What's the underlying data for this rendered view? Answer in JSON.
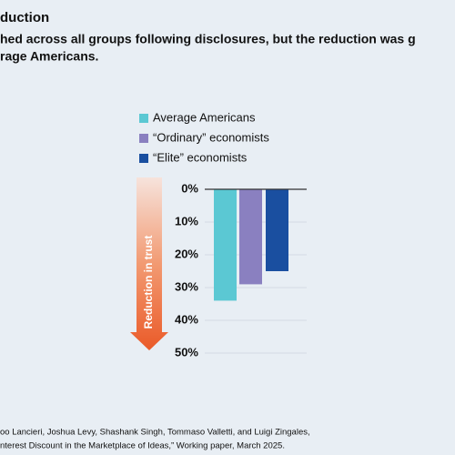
{
  "title": "duction",
  "subtitle": [
    "hed across all groups following disclosures, but the reduction was g",
    "rage Americans."
  ],
  "source": [
    "oo Lancieri, Joshua Levy, Shashank Singh, Tommaso Valletti, and Luigi Zingales,",
    "nterest Discount in the Marketplace of Ideas,” Working paper, March 2025."
  ],
  "chart_data": {
    "type": "bar",
    "y_label": "Reduction in trust",
    "categories": [
      null
    ],
    "series": [
      {
        "name": "Average Americans",
        "color": "#5bc8d3",
        "values": [
          34
        ]
      },
      {
        "name": "“Ordinary” economists",
        "color": "#8a80c0",
        "values": [
          29
        ]
      },
      {
        "name": "“Elite” economists",
        "color": "#1a4fa0",
        "values": [
          25
        ]
      }
    ],
    "ylim": [
      0,
      50
    ],
    "inverted": true,
    "yticks": [
      {
        "value": 0,
        "label": "0%"
      },
      {
        "value": 10,
        "label": "10%"
      },
      {
        "value": 20,
        "label": "20%"
      },
      {
        "value": 30,
        "label": "30%"
      },
      {
        "value": 40,
        "label": "40%"
      },
      {
        "value": 50,
        "label": "50%"
      }
    ]
  }
}
